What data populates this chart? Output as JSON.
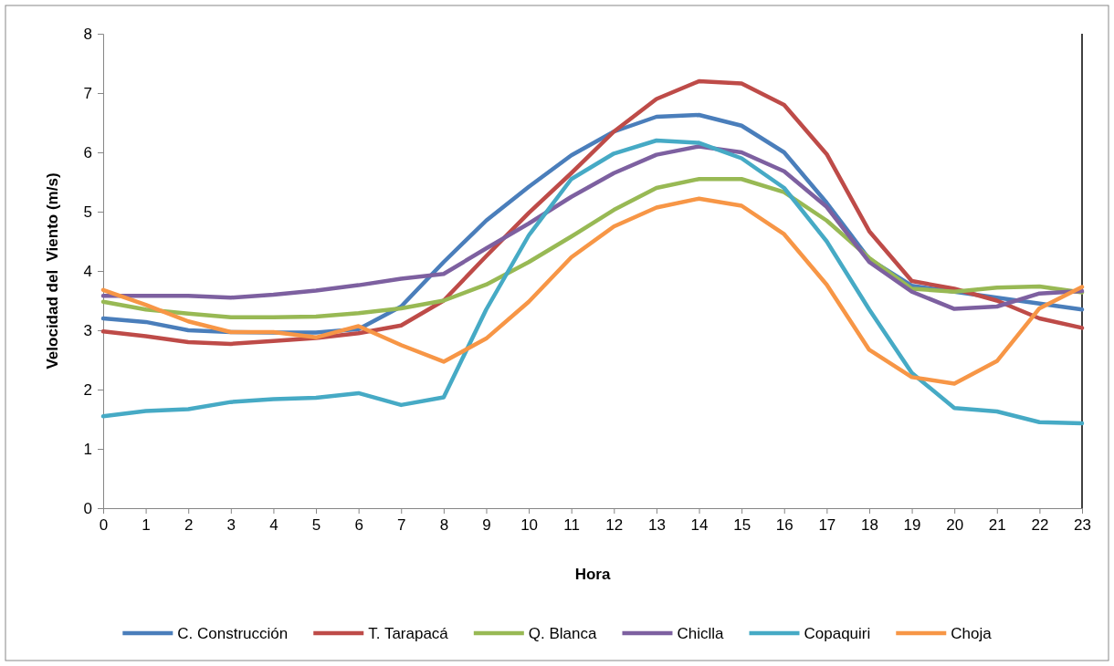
{
  "chart_data": {
    "type": "line",
    "xlabel": "Hora",
    "ylabel": "Velocidad del  Viento (m/s)",
    "x": [
      0,
      1,
      2,
      3,
      4,
      5,
      6,
      7,
      8,
      9,
      10,
      11,
      12,
      13,
      14,
      15,
      16,
      17,
      18,
      19,
      20,
      21,
      22,
      23
    ],
    "xlim": [
      0,
      23
    ],
    "xticks": [
      0,
      1,
      2,
      3,
      4,
      5,
      6,
      7,
      8,
      9,
      10,
      11,
      12,
      13,
      14,
      15,
      16,
      17,
      18,
      19,
      20,
      21,
      22,
      23
    ],
    "ylim": [
      0,
      8
    ],
    "yticks": [
      0,
      1,
      2,
      3,
      4,
      5,
      6,
      7,
      8
    ],
    "grid": false,
    "legend": "bottom",
    "marker": "none",
    "line_style": "solid",
    "series": [
      {
        "name": "C. Construcción",
        "color": "#4a7ebb",
        "values": [
          3.2,
          3.14,
          3.0,
          2.97,
          2.96,
          2.96,
          3.02,
          3.4,
          4.15,
          4.85,
          5.42,
          5.95,
          6.35,
          6.6,
          6.63,
          6.45,
          6.0,
          5.15,
          4.2,
          3.75,
          3.65,
          3.55,
          3.45,
          3.35
        ]
      },
      {
        "name": "T. Tarapacá",
        "color": "#be4b48",
        "values": [
          2.98,
          2.9,
          2.8,
          2.77,
          2.82,
          2.87,
          2.95,
          3.08,
          3.5,
          4.25,
          4.98,
          5.65,
          6.35,
          6.9,
          7.2,
          7.16,
          6.8,
          5.97,
          4.67,
          3.83,
          3.7,
          3.5,
          3.2,
          3.04
        ]
      },
      {
        "name": "Q. Blanca",
        "color": "#98b954",
        "values": [
          3.48,
          3.35,
          3.28,
          3.22,
          3.22,
          3.23,
          3.29,
          3.37,
          3.5,
          3.77,
          4.15,
          4.58,
          5.03,
          5.4,
          5.55,
          5.55,
          5.33,
          4.85,
          4.22,
          3.7,
          3.65,
          3.72,
          3.74,
          3.64
        ]
      },
      {
        "name": "Chiclla",
        "color": "#7d60a0",
        "values": [
          3.58,
          3.58,
          3.58,
          3.55,
          3.6,
          3.67,
          3.76,
          3.87,
          3.95,
          4.38,
          4.8,
          5.25,
          5.65,
          5.96,
          6.1,
          6.0,
          5.68,
          5.08,
          4.15,
          3.65,
          3.36,
          3.4,
          3.62,
          3.66
        ]
      },
      {
        "name": "Copaquiri",
        "color": "#46aac5",
        "values": [
          1.55,
          1.64,
          1.67,
          1.79,
          1.84,
          1.86,
          1.94,
          1.74,
          1.87,
          3.35,
          4.6,
          5.55,
          5.98,
          6.2,
          6.16,
          5.9,
          5.4,
          4.5,
          3.35,
          2.28,
          1.69,
          1.63,
          1.45,
          1.43
        ]
      },
      {
        "name": "Choja",
        "color": "#f79646",
        "values": [
          3.68,
          3.43,
          3.15,
          2.97,
          2.97,
          2.88,
          3.07,
          2.75,
          2.47,
          2.86,
          3.48,
          4.23,
          4.75,
          5.07,
          5.22,
          5.1,
          4.62,
          3.77,
          2.67,
          2.21,
          2.1,
          2.48,
          3.37,
          3.73
        ]
      }
    ]
  }
}
